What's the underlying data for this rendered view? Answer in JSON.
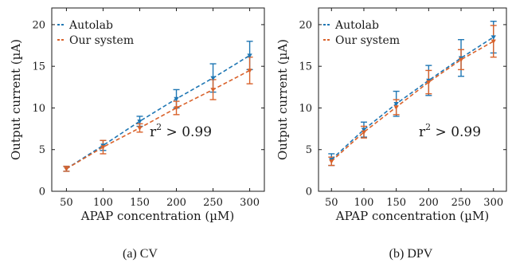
{
  "colors": {
    "autolab": "#1f77b4",
    "our_system": "#d9622b",
    "axis": "#1a1a1a"
  },
  "chart_data": [
    {
      "type": "line",
      "caption": "(a) CV",
      "xlabel": "APAP concentration (µM)",
      "ylabel": "Output current (µA)",
      "xlim": [
        30,
        320
      ],
      "ylim": [
        0,
        22
      ],
      "x_ticks": [
        50,
        100,
        150,
        200,
        250,
        300
      ],
      "y_ticks": [
        0,
        5,
        10,
        15,
        20
      ],
      "x": [
        50,
        100,
        150,
        200,
        250,
        300
      ],
      "annotation": {
        "base": "r",
        "sup": "2",
        "rest": " > 0.99"
      },
      "legend_position": "top-left",
      "series": [
        {
          "name": "Autolab",
          "color": "#1f77b4",
          "values": [
            2.7,
            5.5,
            8.4,
            11.1,
            13.6,
            16.3
          ],
          "errors": [
            0.3,
            0.6,
            0.6,
            1.1,
            1.7,
            1.7
          ]
        },
        {
          "name": "Our system",
          "color": "#d9622b",
          "values": [
            2.7,
            5.3,
            7.6,
            10.0,
            12.2,
            14.5
          ],
          "errors": [
            0.3,
            0.8,
            0.5,
            0.8,
            1.2,
            1.6
          ]
        }
      ]
    },
    {
      "type": "line",
      "caption": "(b) DPV",
      "xlabel": "APAP concentration (µM)",
      "ylabel": "Output current (µA)",
      "xlim": [
        30,
        320
      ],
      "ylim": [
        0,
        22
      ],
      "x_ticks": [
        50,
        100,
        150,
        200,
        250,
        300
      ],
      "y_ticks": [
        0,
        5,
        10,
        15,
        20
      ],
      "x": [
        50,
        100,
        150,
        200,
        250,
        300
      ],
      "annotation": {
        "base": "r",
        "sup": "2",
        "rest": " > 0.99"
      },
      "legend_position": "top-left",
      "series": [
        {
          "name": "Autolab",
          "color": "#1f77b4",
          "values": [
            3.8,
            7.4,
            10.5,
            13.3,
            16.0,
            18.5
          ],
          "errors": [
            0.7,
            0.9,
            1.5,
            1.8,
            2.2,
            1.9
          ]
        },
        {
          "name": "Our system",
          "color": "#d9622b",
          "values": [
            3.6,
            7.1,
            10.1,
            13.1,
            15.8,
            18.0
          ],
          "errors": [
            0.5,
            0.7,
            0.9,
            1.4,
            1.2,
            1.9
          ]
        }
      ]
    }
  ]
}
